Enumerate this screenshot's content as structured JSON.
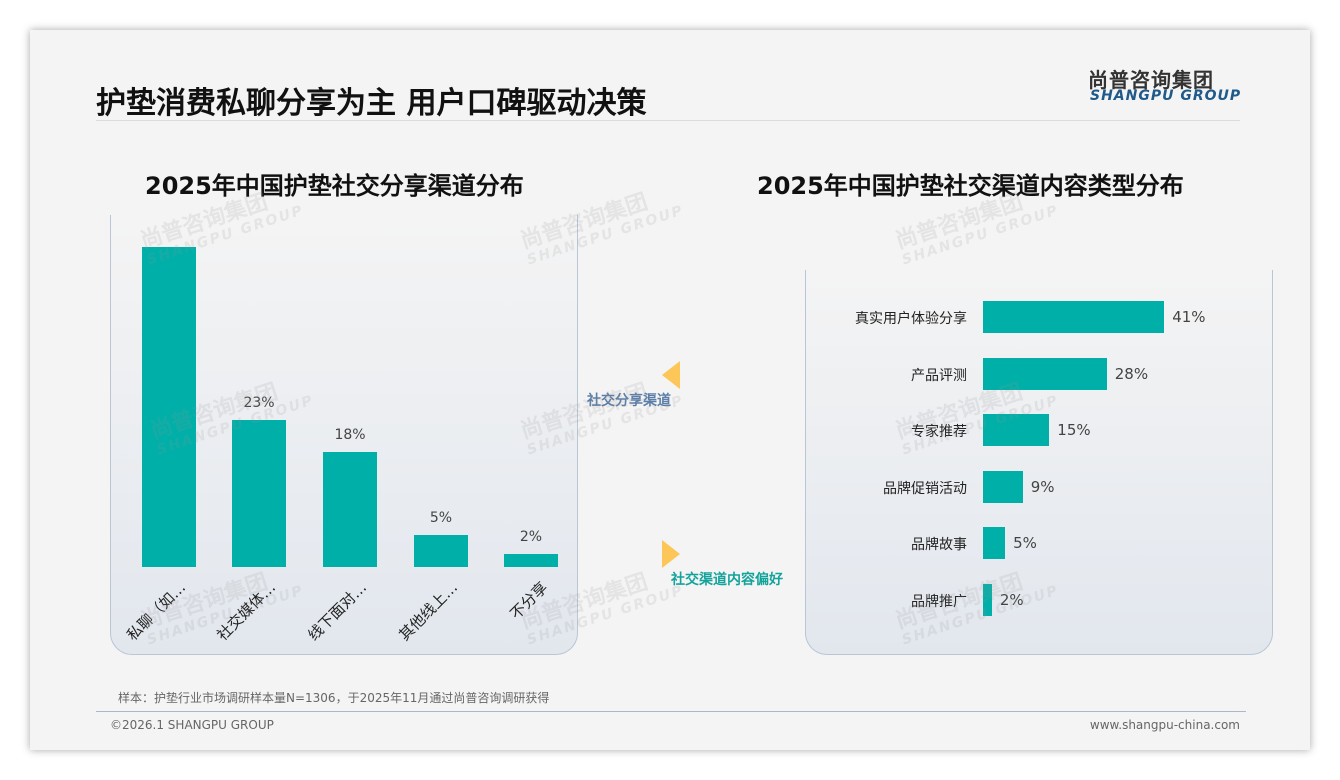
{
  "header": {
    "title": "护垫消费私聊分享为主 用户口碑驱动决策",
    "logo_cn": "尚普咨询集团",
    "logo_en": "SHANGPU GROUP"
  },
  "arrows": {
    "left_label": "社交分享渠道",
    "right_label": "社交渠道内容偏好",
    "left_color": "#5b7ea8",
    "right_color": "#14a39b",
    "arrow_color": "#fcc659"
  },
  "chart_data": [
    {
      "type": "bar",
      "title": "2025年中国护垫社交分享渠道分布",
      "categories": [
        "私聊（如…",
        "社交媒体…",
        "线下面对…",
        "其他线上…",
        "不分享"
      ],
      "values": [
        50,
        23,
        18,
        5,
        2
      ],
      "labels": [
        "",
        "23%",
        "18%",
        "5%",
        "2%"
      ],
      "unit": "%",
      "color": "#00b0a8"
    },
    {
      "type": "bar",
      "orientation": "horizontal",
      "title": "2025年中国护垫社交渠道内容类型分布",
      "categories": [
        "真实用户体验分享",
        "产品评测",
        "专家推荐",
        "品牌促销活动",
        "品牌故事",
        "品牌推广"
      ],
      "values": [
        41,
        28,
        15,
        9,
        5,
        2
      ],
      "labels": [
        "41%",
        "28%",
        "15%",
        "9%",
        "5%",
        "2%"
      ],
      "unit": "%",
      "color": "#00b0a8"
    }
  ],
  "footer": {
    "note": "样本：护垫行业市场调研样本量N=1306，于2025年11月通过尚普咨询调研获得",
    "copyright": "©2026.1 SHANGPU GROUP",
    "url": "www.shangpu-china.com"
  }
}
